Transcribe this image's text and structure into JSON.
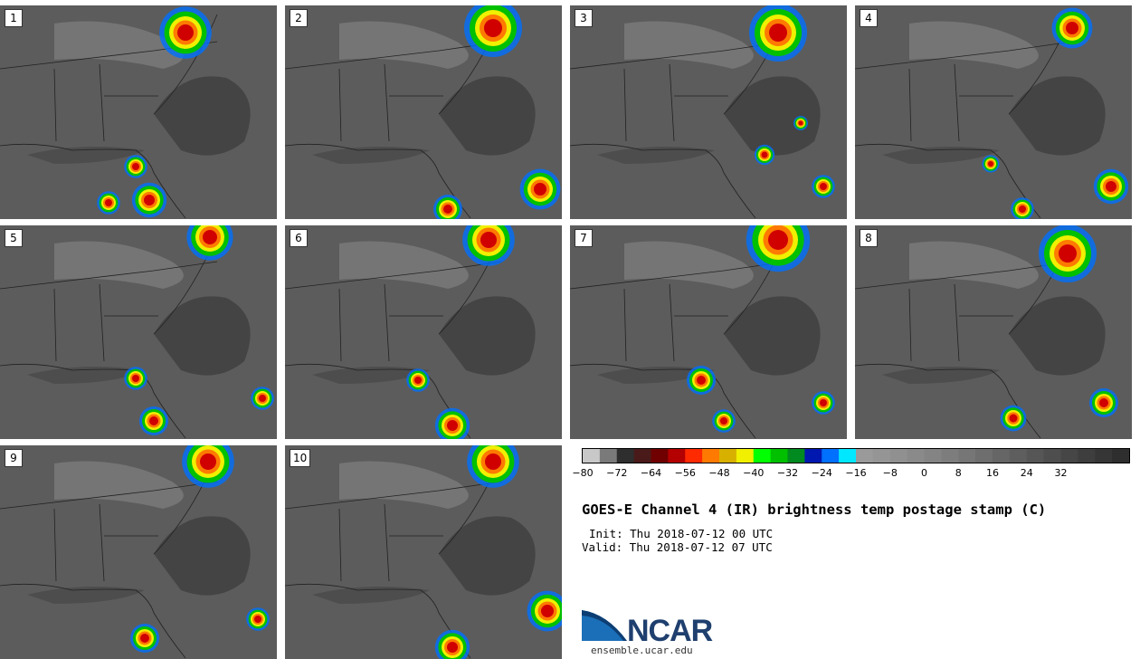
{
  "figure": {
    "title": "GOES-E Channel 4 (IR) brightness temp postage stamp (C)",
    "init": "Init: Thu 2018-07-12 00 UTC",
    "valid": "Valid: Thu 2018-07-12 07 UTC"
  },
  "panels": [
    {
      "label": "1"
    },
    {
      "label": "2"
    },
    {
      "label": "3"
    },
    {
      "label": "4"
    },
    {
      "label": "5"
    },
    {
      "label": "6"
    },
    {
      "label": "7"
    },
    {
      "label": "8"
    },
    {
      "label": "9"
    },
    {
      "label": "10"
    }
  ],
  "colorbar": {
    "colors": [
      "#c8c8c8",
      "#7a7a7a",
      "#2e2e2e",
      "#4a1a1a",
      "#700000",
      "#b40000",
      "#ff2a00",
      "#ff7a00",
      "#d8b000",
      "#f0f000",
      "#00ff00",
      "#00c000",
      "#008a20",
      "#0018b0",
      "#0070ff",
      "#00e8ff",
      "#9a9a9a",
      "#959595",
      "#909090",
      "#8a8a8a",
      "#848484",
      "#7d7d7d",
      "#767676",
      "#6e6e6e",
      "#666666",
      "#5e5e5e",
      "#565656",
      "#4e4e4e",
      "#464646",
      "#3e3e3e",
      "#363636",
      "#2e2e2e"
    ],
    "tick_labels": [
      "−80",
      "−72",
      "−64",
      "−56",
      "−48",
      "−40",
      "−32",
      "−24",
      "−16",
      "−8",
      "0",
      "8",
      "16",
      "24",
      "32"
    ]
  },
  "logo": {
    "name": "NCAR",
    "url": "ensemble.ucar.edu"
  }
}
